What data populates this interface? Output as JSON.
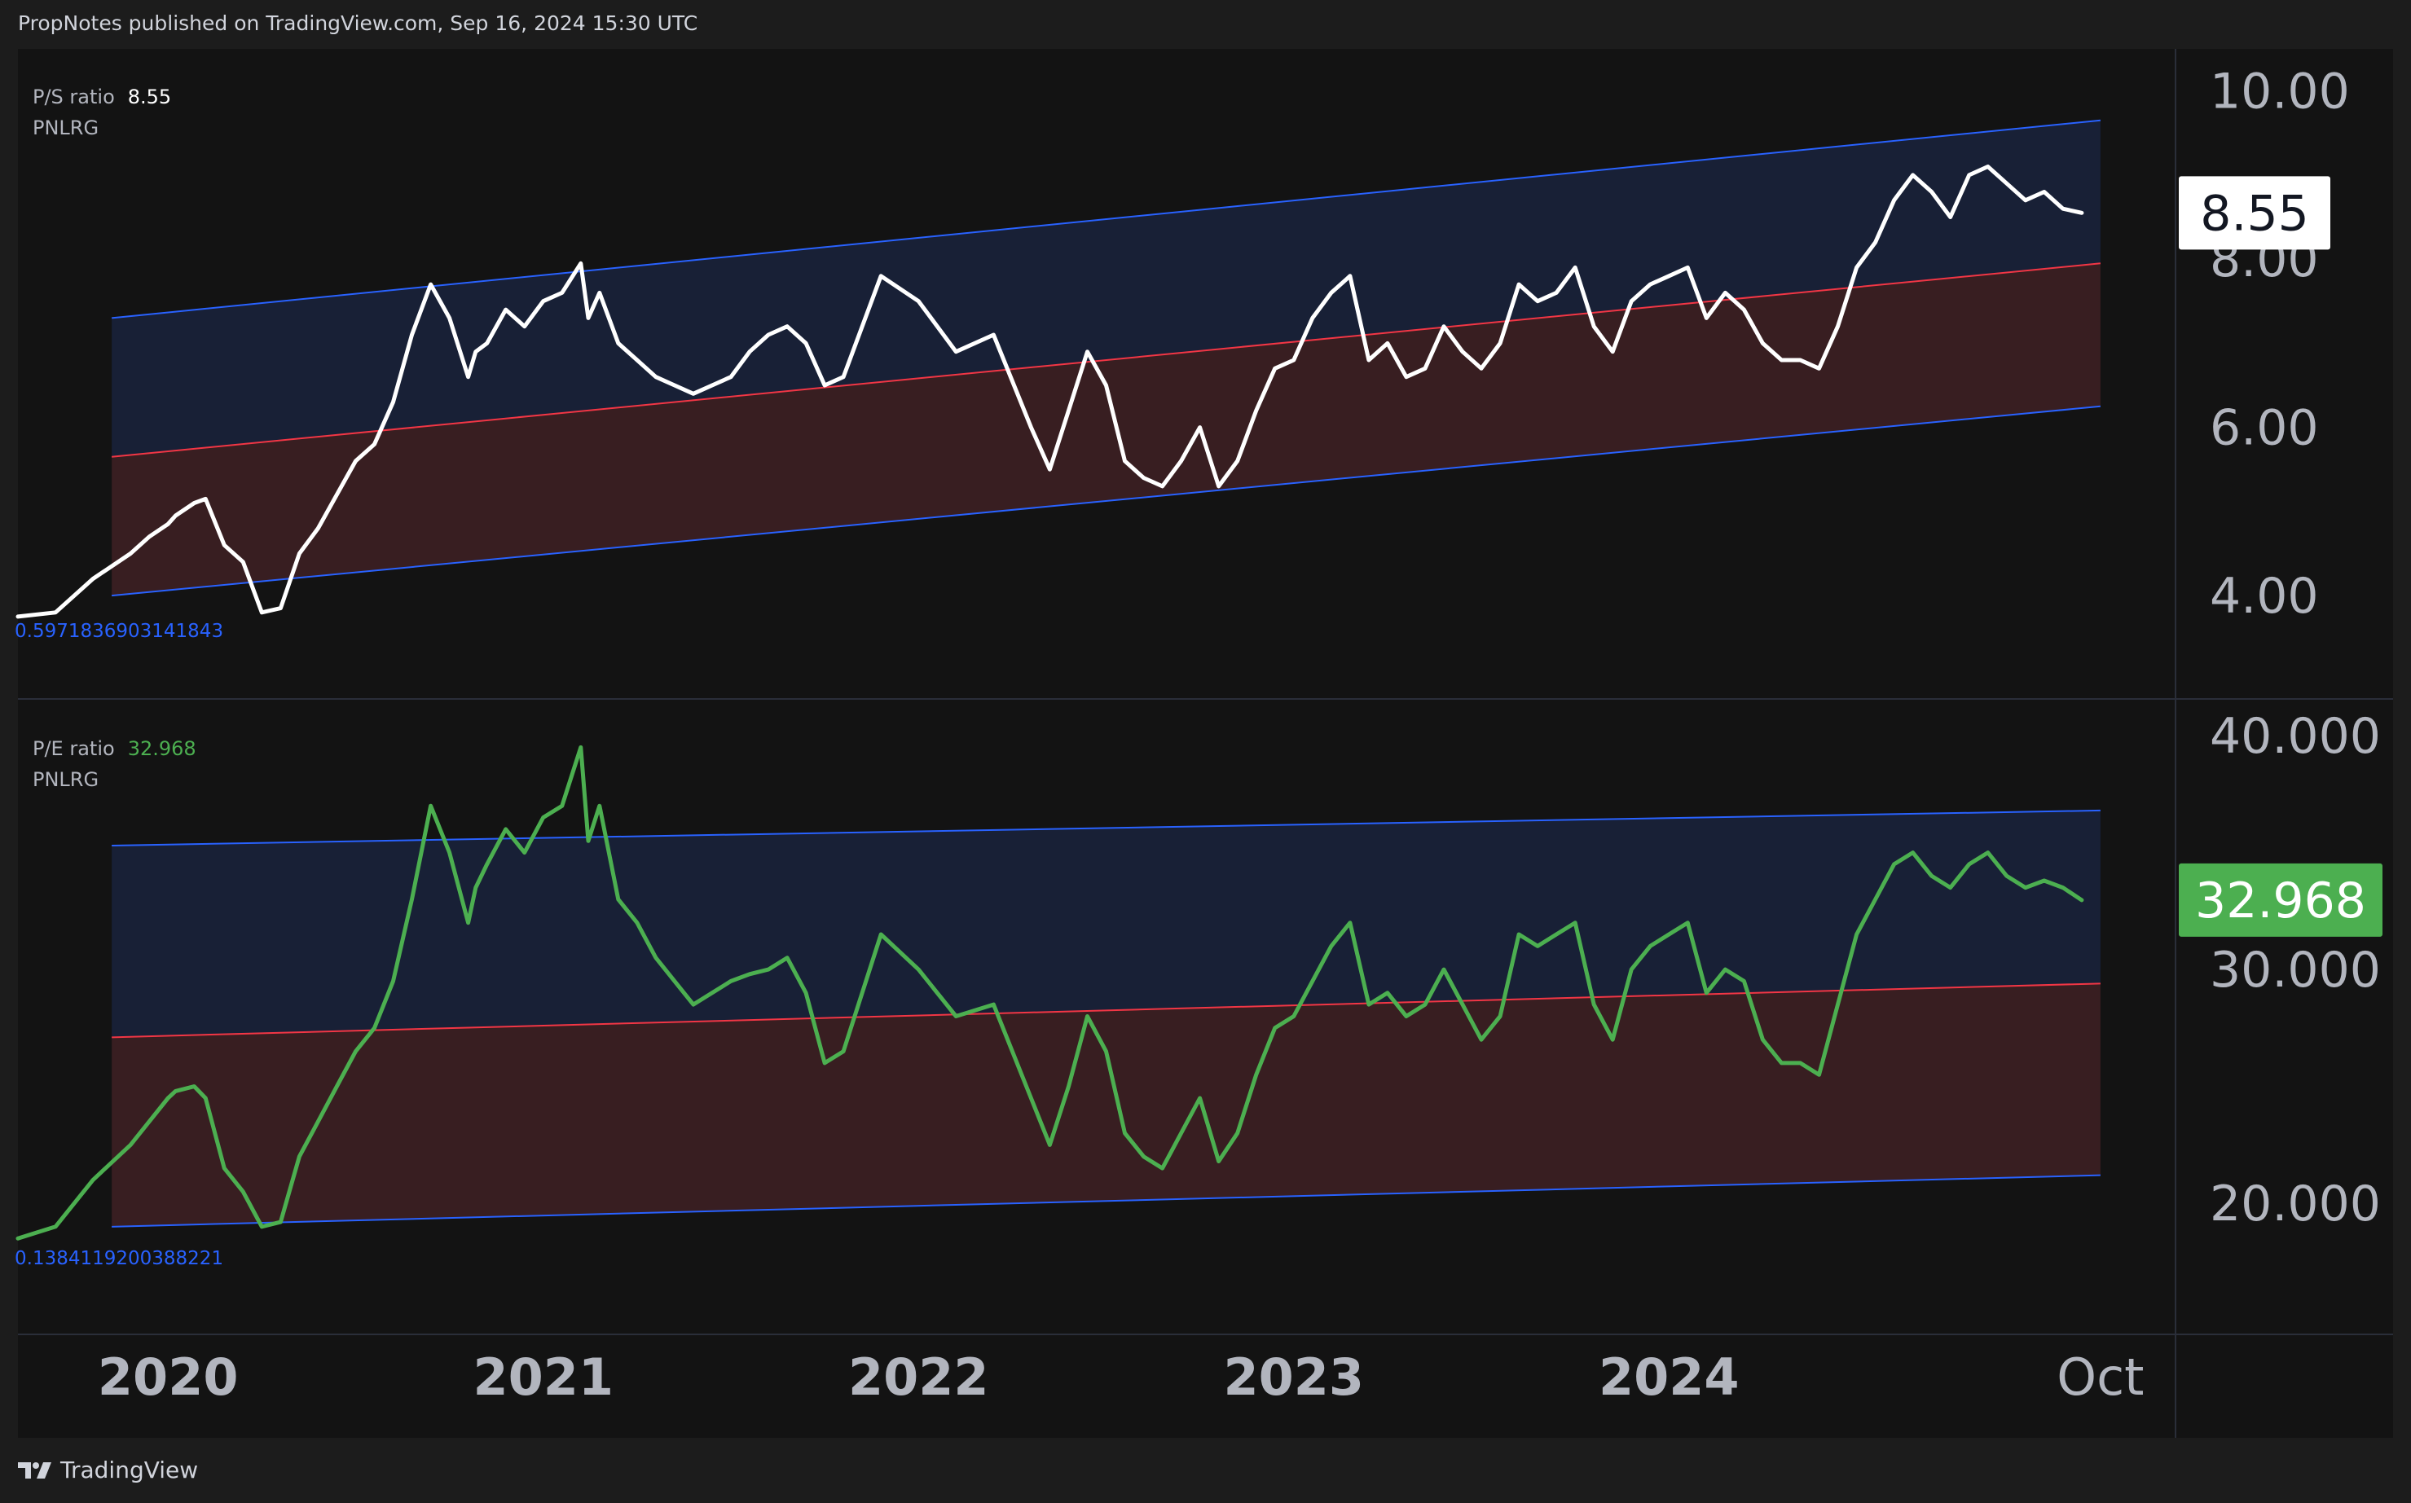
{
  "header": {
    "published_line": "PropNotes published on TradingView.com, Sep 16, 2024 15:30 UTC"
  },
  "footer": {
    "logo_icon": "tradingview-logo-icon",
    "brand": "TradingView"
  },
  "colors": {
    "background": "#131313",
    "frame": "#1c1c1c",
    "channel_blue": "#2962ff",
    "channel_mid": "#f23645",
    "upper_fill": "#182036",
    "lower_fill": "#381e21",
    "ps_line": "#ffffff",
    "pe_line": "#4caf50"
  },
  "chart_data": [
    {
      "type": "line",
      "title": "P/S ratio",
      "symbol": "PNLRG",
      "current_value": "8.55",
      "current_value_num": 8.55,
      "regression_start_label": "0.5971836903141843",
      "yticks": [
        "10.00",
        "8.00",
        "6.00",
        "4.00"
      ],
      "ytick_values": [
        10,
        8,
        6,
        4
      ],
      "ylim": [
        2.8,
        10.5
      ],
      "xlim": [
        2019.2,
        2024.95
      ],
      "channel": {
        "x_start": 2019.45,
        "x_end": 2024.75,
        "upper": [
          7.3,
          9.65
        ],
        "middle": [
          5.65,
          7.95
        ],
        "lower": [
          4.0,
          6.25
        ]
      },
      "series": [
        {
          "values_x": [
            2019.2,
            2019.3,
            2019.4,
            2019.5,
            2019.55,
            2019.6,
            2019.62,
            2019.67,
            2019.7,
            2019.75,
            2019.8,
            2019.85,
            2019.9,
            2019.95,
            2020.0,
            2020.05,
            2020.1,
            2020.15,
            2020.2,
            2020.25,
            2020.3,
            2020.35,
            2020.4,
            2020.42,
            2020.45,
            2020.5,
            2020.55,
            2020.6,
            2020.65,
            2020.7,
            2020.72,
            2020.75,
            2020.8,
            2020.85,
            2020.9,
            2020.95,
            2021.0,
            2021.05,
            2021.1,
            2021.15,
            2021.2,
            2021.25,
            2021.3,
            2021.35,
            2021.4,
            2021.5,
            2021.6,
            2021.7,
            2021.8,
            2021.9,
            2021.95,
            2022.0,
            2022.05,
            2022.1,
            2022.15,
            2022.2,
            2022.25,
            2022.3,
            2022.35,
            2022.4,
            2022.45,
            2022.5,
            2022.55,
            2022.6,
            2022.65,
            2022.7,
            2022.75,
            2022.8,
            2022.85,
            2022.9,
            2022.95,
            2023.0,
            2023.05,
            2023.1,
            2023.15,
            2023.2,
            2023.25,
            2023.3,
            2023.35,
            2023.4,
            2023.45,
            2023.5,
            2023.55,
            2023.6,
            2023.65,
            2023.7,
            2023.75,
            2023.8,
            2023.85,
            2023.9,
            2023.95,
            2024.0,
            2024.05,
            2024.1,
            2024.15,
            2024.2,
            2024.25,
            2024.3,
            2024.35,
            2024.4,
            2024.45,
            2024.5,
            2024.55,
            2024.6,
            2024.65,
            2024.7
          ],
          "values": [
            3.75,
            3.8,
            4.2,
            4.5,
            4.7,
            4.85,
            4.95,
            5.1,
            5.15,
            4.6,
            4.4,
            3.8,
            3.85,
            4.5,
            4.8,
            5.2,
            5.6,
            5.8,
            6.3,
            7.1,
            7.7,
            7.3,
            6.6,
            6.9,
            7.0,
            7.4,
            7.2,
            7.5,
            7.6,
            7.95,
            7.3,
            7.6,
            7.0,
            6.8,
            6.6,
            6.5,
            6.4,
            6.5,
            6.6,
            6.9,
            7.1,
            7.2,
            7.0,
            6.5,
            6.6,
            7.8,
            7.5,
            6.9,
            7.1,
            6.0,
            5.5,
            6.2,
            6.9,
            6.5,
            5.6,
            5.4,
            5.3,
            5.6,
            6.0,
            5.3,
            5.6,
            6.2,
            6.7,
            6.8,
            7.3,
            7.6,
            7.8,
            6.8,
            7.0,
            6.6,
            6.7,
            7.2,
            6.9,
            6.7,
            7.0,
            7.7,
            7.5,
            7.6,
            7.9,
            7.2,
            6.9,
            7.5,
            7.7,
            7.8,
            7.9,
            7.3,
            7.6,
            7.4,
            7.0,
            6.8,
            6.8,
            6.7,
            7.2,
            7.9,
            8.2,
            8.7,
            9.0,
            8.8,
            8.5,
            9.0,
            9.1,
            8.9,
            8.7,
            8.8,
            8.6,
            8.55
          ]
        }
      ]
    },
    {
      "type": "line",
      "title": "P/E ratio",
      "symbol": "PNLRG",
      "current_value": "32.968",
      "current_value_num": 32.968,
      "regression_start_label": "0.1384119200388221",
      "yticks": [
        "40.000",
        "30.000",
        "20.000"
      ],
      "ytick_values": [
        40,
        30,
        20
      ],
      "ylim": [
        14.5,
        41.5
      ],
      "xlim": [
        2019.2,
        2024.95
      ],
      "channel": {
        "x_start": 2019.45,
        "x_end": 2024.75,
        "upper": [
          35.3,
          36.8
        ],
        "middle": [
          27.1,
          29.4
        ],
        "lower": [
          19.0,
          21.2
        ]
      },
      "series": [
        {
          "values_x": [
            2019.2,
            2019.3,
            2019.4,
            2019.5,
            2019.55,
            2019.6,
            2019.62,
            2019.67,
            2019.7,
            2019.75,
            2019.8,
            2019.85,
            2019.9,
            2019.95,
            2020.0,
            2020.05,
            2020.1,
            2020.15,
            2020.2,
            2020.25,
            2020.3,
            2020.35,
            2020.4,
            2020.42,
            2020.45,
            2020.5,
            2020.55,
            2020.6,
            2020.65,
            2020.7,
            2020.72,
            2020.75,
            2020.8,
            2020.85,
            2020.9,
            2020.95,
            2021.0,
            2021.05,
            2021.1,
            2021.15,
            2021.2,
            2021.25,
            2021.3,
            2021.35,
            2021.4,
            2021.5,
            2021.6,
            2021.7,
            2021.8,
            2021.9,
            2021.95,
            2022.0,
            2022.05,
            2022.1,
            2022.15,
            2022.2,
            2022.25,
            2022.3,
            2022.35,
            2022.4,
            2022.45,
            2022.5,
            2022.55,
            2022.6,
            2022.65,
            2022.7,
            2022.75,
            2022.8,
            2022.85,
            2022.9,
            2022.95,
            2023.0,
            2023.05,
            2023.1,
            2023.15,
            2023.2,
            2023.25,
            2023.3,
            2023.35,
            2023.4,
            2023.45,
            2023.5,
            2023.55,
            2023.6,
            2023.65,
            2023.7,
            2023.75,
            2023.8,
            2023.85,
            2023.9,
            2023.95,
            2024.0,
            2024.05,
            2024.1,
            2024.15,
            2024.2,
            2024.25,
            2024.3,
            2024.35,
            2024.4,
            2024.45,
            2024.5,
            2024.55,
            2024.6,
            2024.65,
            2024.7
          ],
          "values": [
            18.5,
            19.0,
            21.0,
            22.5,
            23.5,
            24.5,
            24.8,
            25.0,
            24.5,
            21.5,
            20.5,
            19.0,
            19.2,
            22.0,
            23.5,
            25.0,
            26.5,
            27.5,
            29.5,
            33.0,
            37.0,
            35.0,
            32.0,
            33.5,
            34.5,
            36.0,
            35.0,
            36.5,
            37.0,
            39.5,
            35.5,
            37.0,
            33.0,
            32.0,
            30.5,
            29.5,
            28.5,
            29.0,
            29.5,
            29.8,
            30.0,
            30.5,
            29.0,
            26.0,
            26.5,
            31.5,
            30.0,
            28.0,
            28.5,
            24.5,
            22.5,
            25.0,
            28.0,
            26.5,
            23.0,
            22.0,
            21.5,
            23.0,
            24.5,
            21.8,
            23.0,
            25.5,
            27.5,
            28.0,
            29.5,
            31.0,
            32.0,
            28.5,
            29.0,
            28.0,
            28.5,
            30.0,
            28.5,
            27.0,
            28.0,
            31.5,
            31.0,
            31.5,
            32.0,
            28.5,
            27.0,
            30.0,
            31.0,
            31.5,
            32.0,
            29.0,
            30.0,
            29.5,
            27.0,
            26.0,
            26.0,
            25.5,
            28.5,
            31.5,
            33.0,
            34.5,
            35.0,
            34.0,
            33.5,
            34.5,
            35.0,
            34.0,
            33.5,
            33.8,
            33.5,
            32.968
          ]
        }
      ]
    }
  ],
  "x_axis": {
    "ticks": [
      {
        "label": "2020",
        "x": 2019.6
      },
      {
        "label": "2021",
        "x": 2020.6
      },
      {
        "label": "2022",
        "x": 2021.6
      },
      {
        "label": "2023",
        "x": 2022.6
      },
      {
        "label": "2024",
        "x": 2023.6
      },
      {
        "label": "Oct",
        "x": 2024.75
      }
    ]
  }
}
